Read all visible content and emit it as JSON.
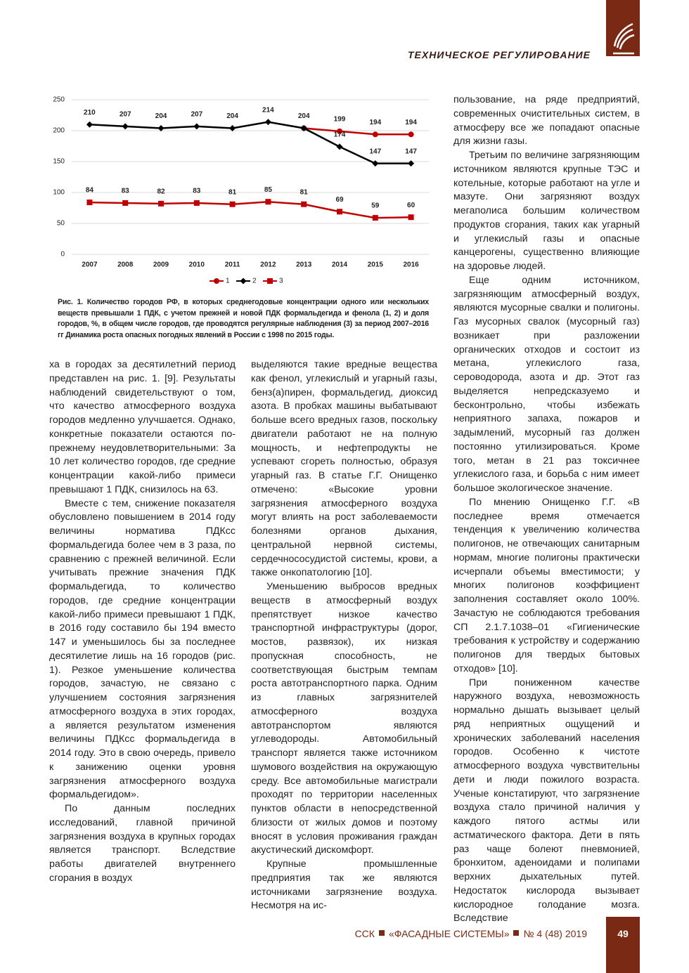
{
  "header": {
    "section": "ТЕХНИЧЕСКОЕ РЕГУЛИРОВАНИЕ"
  },
  "chart_data": {
    "type": "line",
    "categories": [
      "2007",
      "2008",
      "2009",
      "2010",
      "2011",
      "2012",
      "2013",
      "2014",
      "2015",
      "2016"
    ],
    "series": [
      {
        "name": "1",
        "color": "#c00000",
        "marker": "circle",
        "values": [
          null,
          null,
          null,
          null,
          null,
          null,
          204,
          199,
          194,
          194
        ]
      },
      {
        "name": "2",
        "color": "#000000",
        "marker": "diamond",
        "values": [
          210,
          207,
          204,
          207,
          204,
          214,
          204,
          174,
          147,
          147
        ]
      },
      {
        "name": "3",
        "color": "#c00000",
        "marker": "square",
        "values": [
          84,
          83,
          82,
          83,
          81,
          85,
          81,
          69,
          59,
          60
        ]
      }
    ],
    "ylim": [
      0,
      250
    ],
    "yticks": [
      0,
      50,
      100,
      150,
      200,
      250
    ],
    "grid": true,
    "legend": "bottom",
    "data_labels": true
  },
  "figure_caption": "Рис. 1. Количество городов РФ, в которых среднегодовые концентрации одного или нескольких веществ превышали 1 ПДК, с учетом прежней и новой ПДК формальдегида и фенола (1, 2) и доля городов, %, в общем числе городов, где проводятся регулярные наблюдения (3) за период 2007–2016 гг Динамика роста опасных погодных явлений в России с 1998 по 2015 годы.",
  "columns": {
    "left": [
      "ха в городах за десятилетний период представлен на рис. 1. [9]. Результаты наблюдений свидетельствуют о том, что качество атмосферного воздуха городов медленно улучшается. Однако, конкретные показатели остаются по-прежнему неудовлетворительными: За 10 лет количество городов, где средние концентрации какой-либо примеси превышают 1 ПДК, снизилось на 63.",
      "Вместе с тем, снижение показателя обусловлено повышением в 2014 году величины норматива ПДКсс формальдегида более чем в 3 раза, по сравнению с прежней величиной. Если учитывать прежние значения ПДК формальдегида, то количество городов, где средние концентрации какой-либо примеси превышают 1 ПДК, в 2016 году составило бы 194 вместо 147 и уменьшилось бы за последнее десятилетие лишь на 16 городов (рис. 1). Резкое уменьшение количества городов, зачастую, не связано с улучшением состояния загрязнения атмосферного воздуха в этих городах, а является результатом изменения величины ПДКсс формальдегида в 2014 году. Это в свою очередь, привело к занижению оценки уровня загрязнения атмосферного воздуха формальдегидом».",
      "По данным последних исследований, главной причиной загрязнения воздуха в крупных городах является транспорт. Вследствие работы двигателей внутреннего сгорания в воздух"
    ],
    "middle": [
      "выделяются такие вредные вещества как фенол, углекислый и угарный газы, бенз(а)пирен, формальдегид, диоксид азота. В пробках машины выбатывают больше всего вредных газов, поскольку двигатели работают не на полную мощность, и нефтепродукты не успевают сгореть полностью, образуя угарный газ. В статье Г.Г. Онищенко отмечено: «Высокие уровни загрязнения атмосферного воздуха могут влиять на рост заболеваемости болезнями органов дыхания, центральной нервной системы, сердечнососудистой системы, крови, а также онкопатологию [10].",
      "Уменьшению выбросов вредных веществ в атмосферный воздух препятствует низкое качество транспортной инфраструктуры (дорог, мостов, развязок), их низкая пропускная способность, не соответствующая быстрым темпам роста автотранспортного парка. Одним из главных загрязнителей атмосферного воздуха автотранспортом являются углеводороды. Автомобильный транспорт является также источником шумового воздействия на окружающую среду. Все автомобильные магистрали проходят по территории населенных пунктов области в непосредственной близости от жилых домов и поэтому вносят в условия проживания граждан акустический дискомфорт.",
      "Крупные промышленные предприятия так же являются источниками загрязнение воздуха. Несмотря на ис-"
    ],
    "right": [
      "пользование, на ряде предприятий, современных очистительных систем, в атмосферу все же попадают опасные для жизни газы.",
      "Третьим по величине загрязняющим источником являются крупные ТЭС и котельные, которые работают на угле и мазуте. Они загрязняют воздух мегаполиса большим количеством продуктов сгорания, таких как угарный и углекислый газы и опасные канцерогены, существенно влияющие на здоровье людей.",
      "Еще одним источником, загрязняющим атмосферный воздух, являются мусорные свалки и полигоны. Газ мусорных свалок (мусорный газ) возникает при разложении органических отходов и состоит из метана, углекислого газа, сероводорода, азота и др. Этот газ выделяется непредсказуемо и бесконтрольно, чтобы избежать неприятного запаха, пожаров и задымлений, мусорный газ должен постоянно утилизироваться. Кроме того, метан в 21 раз токсичнее углекислого газа, и борьба с ним имеет большое экологическое значение.",
      "По мнению Онищенко Г.Г. «В последнее время отмечается тенденция к увеличению количества полигонов, не отвечающих санитарным нормам, многие полигоны практически исчерпали объемы вместимости; у многих полигонов коэффициент заполнения составляет около 100%. Зачастую не соблюдаются требования СП 2.1.7.1038–01 «Гигиенические требования к устройству и содержанию полигонов для твердых бытовых отходов» [10].",
      "При пониженном качестве наружного воздуха, невозможность нормально дышать вызывает целый ряд неприятных ощущений и хронических заболеваний населения городов. Особенно к чистоте атмосферного воздуха чувствительны дети и люди пожилого возраста. Ученые констатируют, что загрязнение воздуха стало причиной наличия у каждого пятого астмы или астматического фактора. Дети в пять раз чаще болеют пневмонией, бронхитом, аденоидами и полипами верхних дыхательных путей. Недостаток кислорода вызывает кислородное голодание мозга. Вследствие"
    ]
  },
  "footer": {
    "parts": [
      "ССК",
      "«ФАСАДНЫЕ СИСТЕМЫ»",
      "№ 4 (48) 2019"
    ],
    "page": "49"
  }
}
